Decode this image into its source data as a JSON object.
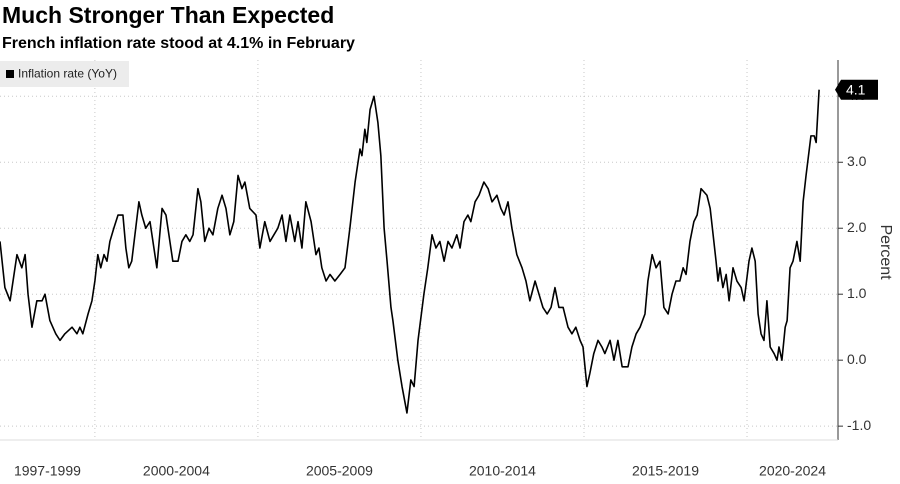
{
  "chart_data": {
    "type": "line",
    "title": "Much Stronger Than Expected",
    "subtitle": "French inflation rate stood at 4.1% in February",
    "y_axis_label": "Percent",
    "legend": "top-left",
    "grid": true,
    "xlim": [
      1997.09,
      2022.79
    ],
    "xticks": [
      2000,
      2005,
      2010,
      2015,
      2020
    ],
    "x_period_labels": [
      "1997-1999",
      "2000-2004",
      "2005-2009",
      "2010-2014",
      "2015-2019",
      "2020-2024"
    ],
    "ylim": [
      -1.21,
      4.55
    ],
    "yticks": [
      {
        "value": -1,
        "label": "-1.0"
      },
      {
        "value": 0,
        "label": "0.0"
      },
      {
        "value": 1,
        "label": "1.0"
      },
      {
        "value": 2,
        "label": "2.0"
      },
      {
        "value": 3,
        "label": "3.0"
      },
      {
        "value": 4,
        "label": "4.0"
      }
    ],
    "x": [
      1997.09,
      1997.24,
      1997.4,
      1997.61,
      1997.76,
      1997.86,
      1997.95,
      1998.07,
      1998.22,
      1998.38,
      1998.47,
      1998.62,
      1998.8,
      1998.93,
      1999.08,
      1999.3,
      1999.45,
      1999.54,
      1999.63,
      1999.79,
      1999.91,
      2000.0,
      2000.09,
      2000.18,
      2000.28,
      2000.37,
      2000.46,
      2000.58,
      2000.71,
      2000.86,
      2000.95,
      2001.04,
      2001.13,
      2001.35,
      2001.44,
      2001.56,
      2001.69,
      2001.81,
      2001.9,
      2002.06,
      2002.18,
      2002.39,
      2002.55,
      2002.67,
      2002.79,
      2002.91,
      2003.01,
      2003.16,
      2003.25,
      2003.37,
      2003.5,
      2003.62,
      2003.77,
      2003.9,
      2004.02,
      2004.14,
      2004.26,
      2004.39,
      2004.51,
      2004.6,
      2004.75,
      2004.94,
      2005.06,
      2005.21,
      2005.37,
      2005.49,
      2005.61,
      2005.74,
      2005.86,
      2005.98,
      2006.13,
      2006.23,
      2006.35,
      2006.47,
      2006.63,
      2006.78,
      2006.87,
      2006.96,
      2007.09,
      2007.21,
      2007.36,
      2007.52,
      2007.67,
      2007.82,
      2007.98,
      2008.13,
      2008.19,
      2008.28,
      2008.34,
      2008.44,
      2008.56,
      2008.68,
      2008.77,
      2008.87,
      2008.96,
      2009.08,
      2009.14,
      2009.29,
      2009.42,
      2009.57,
      2009.69,
      2009.79,
      2009.91,
      2010.09,
      2010.21,
      2010.34,
      2010.46,
      2010.58,
      2010.71,
      2010.83,
      2010.95,
      2011.1,
      2011.2,
      2011.32,
      2011.44,
      2011.53,
      2011.66,
      2011.78,
      2011.93,
      2012.06,
      2012.18,
      2012.33,
      2012.45,
      2012.55,
      2012.67,
      2012.79,
      2012.94,
      2013.1,
      2013.22,
      2013.34,
      2013.5,
      2013.62,
      2013.74,
      2013.87,
      2013.99,
      2014.11,
      2014.23,
      2014.36,
      2014.51,
      2014.63,
      2014.75,
      2014.88,
      2014.97,
      2015.09,
      2015.18,
      2015.3,
      2015.43,
      2015.55,
      2015.64,
      2015.8,
      2015.92,
      2016.04,
      2016.17,
      2016.35,
      2016.47,
      2016.6,
      2016.72,
      2016.87,
      2016.96,
      2017.09,
      2017.21,
      2017.33,
      2017.45,
      2017.58,
      2017.7,
      2017.82,
      2017.94,
      2018.04,
      2018.13,
      2018.25,
      2018.37,
      2018.47,
      2018.59,
      2018.77,
      2018.87,
      2018.96,
      2019.05,
      2019.11,
      2019.17,
      2019.26,
      2019.36,
      2019.45,
      2019.57,
      2019.69,
      2019.82,
      2019.91,
      2020.06,
      2020.15,
      2020.25,
      2020.34,
      2020.43,
      2020.52,
      2020.61,
      2020.71,
      2020.83,
      2020.92,
      2020.98,
      2021.07,
      2021.17,
      2021.23,
      2021.32,
      2021.41,
      2021.53,
      2021.63,
      2021.72,
      2021.81,
      2021.96,
      2022.06,
      2022.12,
      2022.21
    ],
    "series": [
      {
        "name": "Inflation rate (YoY)",
        "color": "#000000",
        "values": [
          1.8,
          1.1,
          0.9,
          1.6,
          1.4,
          1.6,
          1.0,
          0.5,
          0.9,
          0.9,
          1.0,
          0.6,
          0.4,
          0.3,
          0.4,
          0.5,
          0.4,
          0.5,
          0.4,
          0.7,
          0.9,
          1.2,
          1.6,
          1.4,
          1.6,
          1.5,
          1.8,
          2.0,
          2.2,
          2.2,
          1.7,
          1.4,
          1.5,
          2.4,
          2.2,
          2.0,
          2.1,
          1.7,
          1.4,
          2.3,
          2.2,
          1.5,
          1.5,
          1.8,
          1.9,
          1.8,
          1.9,
          2.6,
          2.4,
          1.8,
          2.0,
          1.9,
          2.3,
          2.5,
          2.3,
          1.9,
          2.1,
          2.8,
          2.6,
          2.7,
          2.3,
          2.2,
          1.7,
          2.1,
          1.8,
          1.9,
          2.0,
          2.2,
          1.8,
          2.2,
          1.8,
          2.1,
          1.7,
          2.4,
          2.1,
          1.6,
          1.7,
          1.4,
          1.2,
          1.3,
          1.2,
          1.3,
          1.4,
          2.0,
          2.7,
          3.2,
          3.1,
          3.5,
          3.3,
          3.8,
          4.0,
          3.6,
          3.1,
          2.0,
          1.5,
          0.8,
          0.6,
          0.0,
          -0.4,
          -0.8,
          -0.3,
          -0.4,
          0.3,
          1.0,
          1.4,
          1.9,
          1.7,
          1.8,
          1.5,
          1.8,
          1.7,
          1.9,
          1.7,
          2.1,
          2.2,
          2.1,
          2.4,
          2.5,
          2.7,
          2.6,
          2.4,
          2.5,
          2.3,
          2.2,
          2.4,
          2.0,
          1.6,
          1.4,
          1.2,
          0.9,
          1.2,
          1.0,
          0.8,
          0.7,
          0.8,
          1.1,
          0.8,
          0.8,
          0.5,
          0.4,
          0.5,
          0.3,
          0.2,
          -0.4,
          -0.2,
          0.1,
          0.3,
          0.2,
          0.1,
          0.3,
          0.0,
          0.3,
          -0.1,
          -0.1,
          0.2,
          0.4,
          0.5,
          0.7,
          1.2,
          1.6,
          1.4,
          1.5,
          0.8,
          0.7,
          1.0,
          1.2,
          1.2,
          1.4,
          1.3,
          1.8,
          2.1,
          2.2,
          2.6,
          2.5,
          2.3,
          1.9,
          1.5,
          1.2,
          1.4,
          1.1,
          1.3,
          0.9,
          1.4,
          1.2,
          1.1,
          0.9,
          1.5,
          1.7,
          1.5,
          0.7,
          0.4,
          0.3,
          0.9,
          0.2,
          0.1,
          0.0,
          0.2,
          0.0,
          0.5,
          0.6,
          1.4,
          1.5,
          1.8,
          1.5,
          2.4,
          2.8,
          3.4,
          3.4,
          3.3,
          4.1
        ]
      }
    ]
  }
}
